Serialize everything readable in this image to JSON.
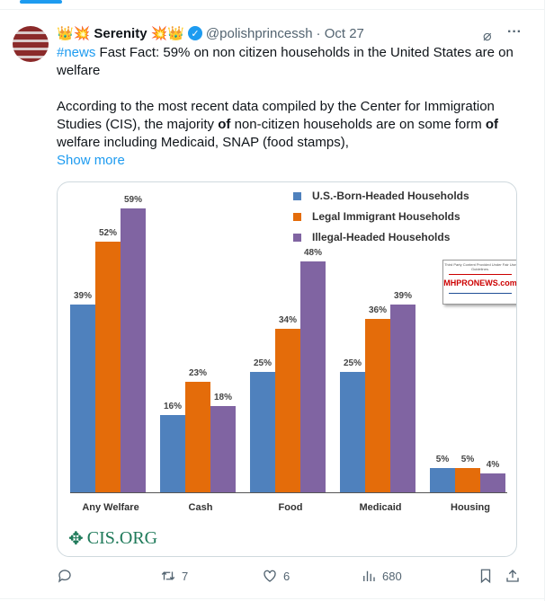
{
  "tweet": {
    "display_name": "Serenity",
    "name_emojis_left": "👑💥",
    "name_emojis_right": "💥👑",
    "handle": "@polishprincessh",
    "date": "· Oct 27",
    "hashtag": "#news",
    "line1": " Fast Fact: 59% on non citizen households in the United States are on welfare",
    "para2_a": "According to the most recent data compiled by  the Center for Immigration Studies (CIS), the majority ",
    "bold_of": "of",
    "para2_b": " non-citizen households  are on some form ",
    "para2_c": " welfare including Medicaid, SNAP (food stamps),",
    "show_more": "Show more"
  },
  "actions": {
    "replies": "",
    "reposts": "7",
    "likes": "6",
    "views": "680"
  },
  "watermark": {
    "caption": "Third Party Content Provided Under Fair Use Guidelines.",
    "logo": "MHPRONEWS.com"
  },
  "source_logo": "CIS.ORG",
  "chart_data": {
    "type": "bar",
    "categories": [
      "Any Welfare",
      "Cash",
      "Food",
      "Medicaid",
      "Housing"
    ],
    "series": [
      {
        "name": "U.S.-Born-Headed Households",
        "color": "#4f81bd",
        "values": [
          39,
          16,
          25,
          25,
          5
        ]
      },
      {
        "name": "Legal Immigrant Households",
        "color": "#e46c0a",
        "values": [
          52,
          23,
          34,
          36,
          5
        ]
      },
      {
        "name": "Illegal-Headed Households",
        "color": "#8064a2",
        "values": [
          59,
          18,
          48,
          39,
          4
        ]
      }
    ],
    "value_suffix": "%",
    "ylim": [
      0,
      62
    ],
    "grid": false,
    "legend": "top-right"
  }
}
